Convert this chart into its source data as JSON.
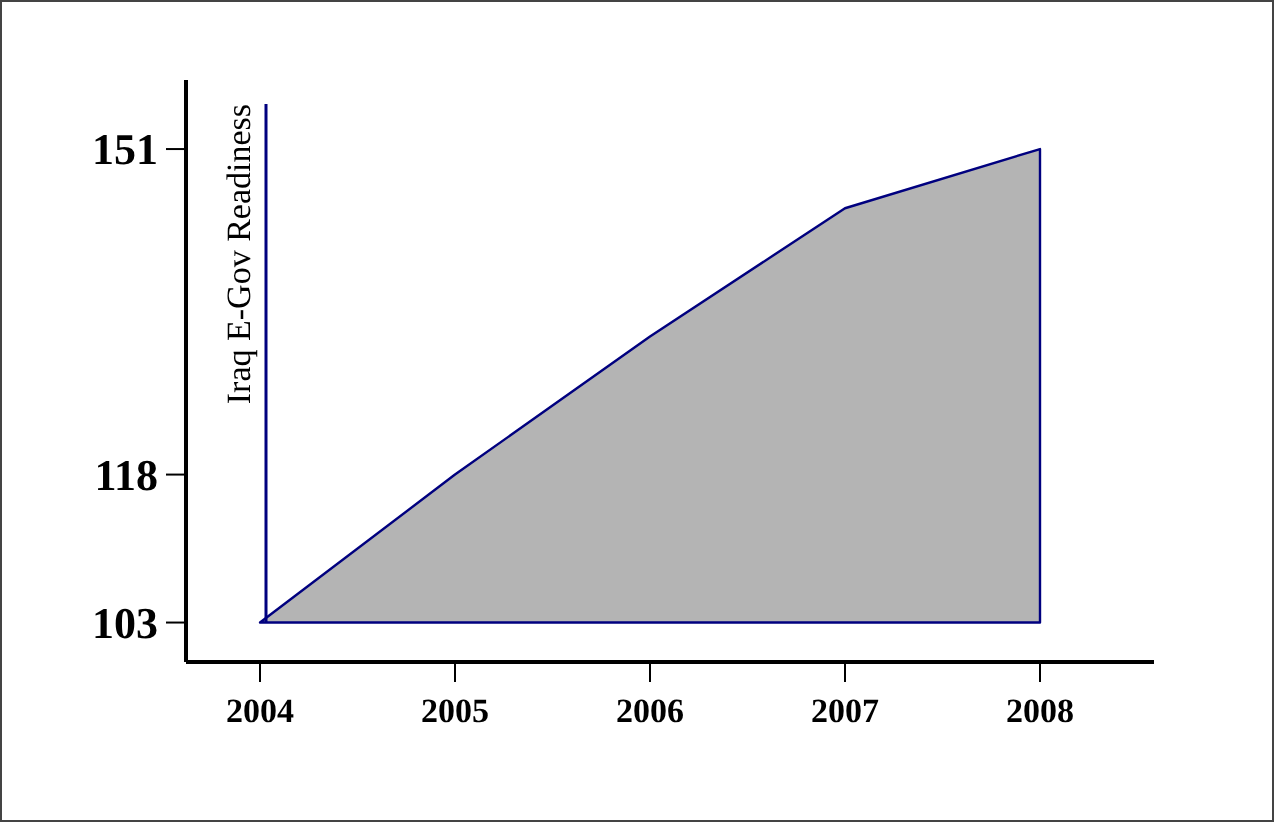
{
  "chart_data": {
    "type": "area",
    "ylabel": "Iraq E-Gov Readiness",
    "categories": [
      "2004",
      "2005",
      "2006",
      "2007",
      "2008"
    ],
    "series": [
      {
        "color": "#b4b4b4",
        "values": [
          103,
          118,
          132,
          145,
          151
        ]
      }
    ],
    "ylim": [
      99,
      158
    ],
    "yticks": [
      103,
      118,
      151
    ],
    "ref_lines": [
      {
        "axis": "x",
        "value": "2004",
        "color": "#00007f"
      }
    ]
  }
}
